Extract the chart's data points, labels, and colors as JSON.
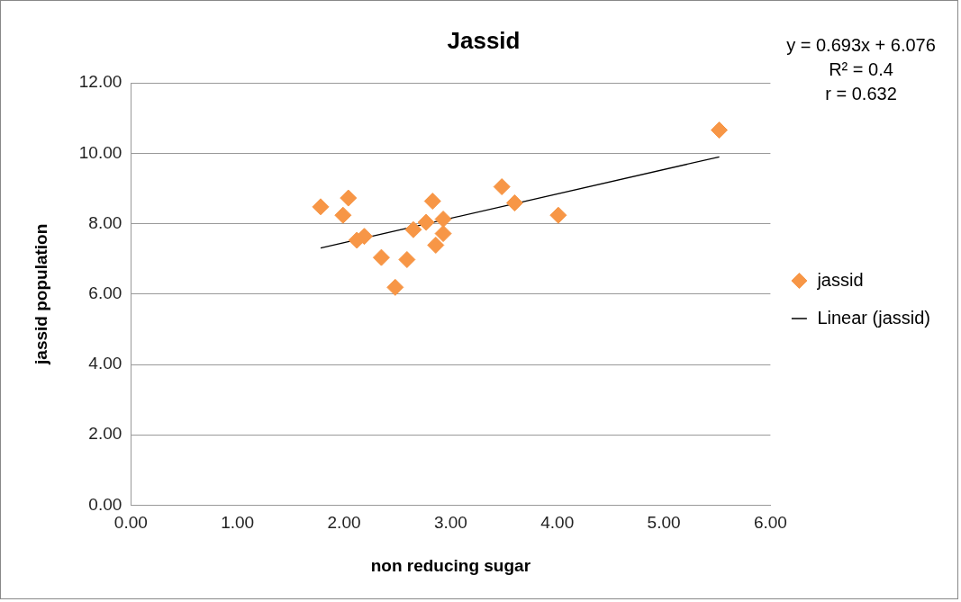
{
  "chart_data": {
    "type": "scatter",
    "title": "Jassid",
    "xlabel": "non reducing sugar",
    "ylabel": "jassid population",
    "annotations": [
      "y = 0.693x + 6.076",
      "R² = 0.4",
      "r = 0.632"
    ],
    "xlim": [
      0,
      6
    ],
    "xticks": [
      {
        "value": 0,
        "label": "0.00"
      },
      {
        "value": 1,
        "label": "1.00"
      },
      {
        "value": 2,
        "label": "2.00"
      },
      {
        "value": 3,
        "label": "3.00"
      },
      {
        "value": 4,
        "label": "4.00"
      },
      {
        "value": 5,
        "label": "5.00"
      },
      {
        "value": 6,
        "label": "6.00"
      }
    ],
    "ylim": [
      0,
      12
    ],
    "yticks": [
      {
        "value": 0,
        "label": "0.00"
      },
      {
        "value": 2,
        "label": "2.00"
      },
      {
        "value": 4,
        "label": "4.00"
      },
      {
        "value": 6,
        "label": "6.00"
      },
      {
        "value": 8,
        "label": "8.00"
      },
      {
        "value": 10,
        "label": "10.00"
      },
      {
        "value": 12,
        "label": "12.00"
      }
    ],
    "grid": "y",
    "legend": "right",
    "series": [
      {
        "name": "jassid",
        "marker": "diamond",
        "color": "#f79646",
        "x": [
          1.78,
          1.99,
          2.04,
          2.19,
          2.12,
          2.35,
          2.59,
          2.48,
          2.65,
          2.77,
          2.83,
          2.93,
          2.93,
          2.86,
          3.48,
          3.6,
          4.01,
          5.52
        ],
        "values": [
          8.48,
          8.24,
          8.73,
          7.64,
          7.53,
          7.04,
          6.98,
          6.19,
          7.83,
          8.04,
          8.64,
          8.13,
          7.72,
          7.39,
          9.05,
          8.59,
          8.24,
          10.66
        ]
      },
      {
        "name": "Linear (jassid)",
        "type": "line",
        "marker": "none",
        "color": "#000000",
        "line_style": "solid",
        "x": [
          1.78,
          5.52
        ],
        "values": [
          7.31,
          9.9
        ]
      }
    ]
  }
}
